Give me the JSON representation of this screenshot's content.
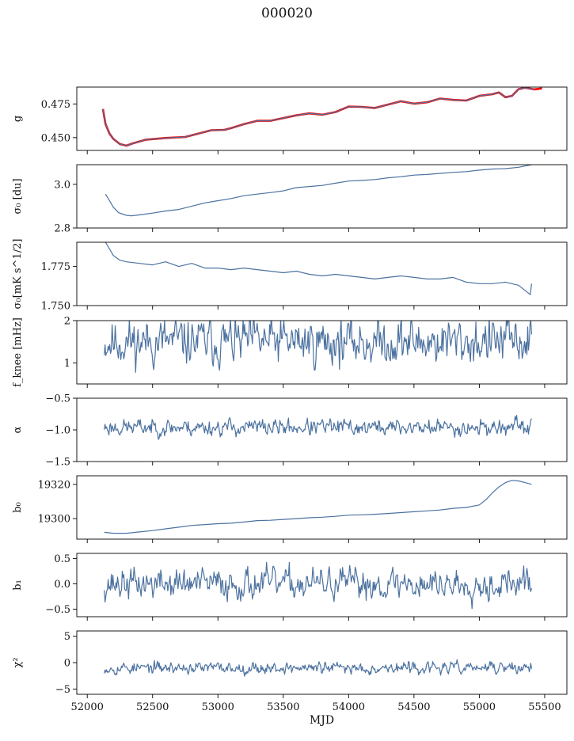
{
  "figure": {
    "title": "000020"
  },
  "chart_data": [
    {
      "type": "line",
      "ylabel": "g",
      "ylim": [
        0.4405,
        0.4875
      ],
      "yticks": [
        0.45,
        0.475
      ],
      "ytick_labels": [
        "0.450",
        "0.475"
      ],
      "series": [
        {
          "color": "#ff0000",
          "points": [
            [
              52120,
              0.4712
            ],
            [
              52140,
              0.46
            ],
            [
              52170,
              0.453
            ],
            [
              52200,
              0.449
            ],
            [
              52250,
              0.4452
            ],
            [
              52300,
              0.444
            ],
            [
              52350,
              0.4458
            ],
            [
              52450,
              0.4485
            ],
            [
              52600,
              0.4497
            ],
            [
              52750,
              0.4505
            ],
            [
              52850,
              0.453
            ],
            [
              52950,
              0.4555
            ],
            [
              53050,
              0.4558
            ],
            [
              53100,
              0.457
            ],
            [
              53200,
              0.46
            ],
            [
              53300,
              0.4625
            ],
            [
              53400,
              0.4625
            ],
            [
              53500,
              0.4645
            ],
            [
              53600,
              0.4665
            ],
            [
              53700,
              0.468
            ],
            [
              53800,
              0.467
            ],
            [
              53900,
              0.469
            ],
            [
              54000,
              0.473
            ],
            [
              54100,
              0.4728
            ],
            [
              54200,
              0.472
            ],
            [
              54300,
              0.4745
            ],
            [
              54400,
              0.477
            ],
            [
              54500,
              0.4752
            ],
            [
              54600,
              0.4762
            ],
            [
              54700,
              0.479
            ],
            [
              54800,
              0.478
            ],
            [
              54900,
              0.4775
            ],
            [
              55000,
              0.481
            ],
            [
              55100,
              0.4822
            ],
            [
              55150,
              0.4835
            ],
            [
              55200,
              0.48
            ],
            [
              55250,
              0.481
            ],
            [
              55300,
              0.486
            ],
            [
              55350,
              0.487
            ],
            [
              55420,
              0.4858
            ],
            [
              55480,
              0.4865
            ]
          ]
        },
        {
          "color": "#4c72a0",
          "points": [
            [
              52120,
              0.4712
            ],
            [
              52140,
              0.46
            ],
            [
              52170,
              0.453
            ],
            [
              52200,
              0.449
            ],
            [
              52250,
              0.4452
            ],
            [
              52300,
              0.444
            ],
            [
              52350,
              0.4458
            ],
            [
              52450,
              0.4485
            ],
            [
              52600,
              0.4497
            ],
            [
              52750,
              0.4505
            ],
            [
              52850,
              0.453
            ],
            [
              52950,
              0.4555
            ],
            [
              53050,
              0.4558
            ],
            [
              53100,
              0.457
            ],
            [
              53200,
              0.46
            ],
            [
              53300,
              0.4625
            ],
            [
              53400,
              0.4625
            ],
            [
              53500,
              0.4645
            ],
            [
              53600,
              0.4665
            ],
            [
              53700,
              0.468
            ],
            [
              53800,
              0.467
            ],
            [
              53900,
              0.469
            ],
            [
              54000,
              0.473
            ],
            [
              54100,
              0.4728
            ],
            [
              54200,
              0.472
            ],
            [
              54300,
              0.4745
            ],
            [
              54400,
              0.477
            ],
            [
              54500,
              0.4752
            ],
            [
              54600,
              0.4762
            ],
            [
              54700,
              0.479
            ],
            [
              54800,
              0.478
            ],
            [
              54900,
              0.4775
            ],
            [
              55000,
              0.481
            ],
            [
              55100,
              0.4822
            ],
            [
              55150,
              0.4835
            ],
            [
              55200,
              0.48
            ],
            [
              55250,
              0.481
            ],
            [
              55300,
              0.486
            ],
            [
              55350,
              0.487
            ],
            [
              55420,
              0.4858
            ]
          ]
        }
      ]
    },
    {
      "type": "line",
      "ylabel": "σ₀ [du]",
      "ylim": [
        2.8,
        3.09
      ],
      "yticks": [
        2.8,
        3.0
      ],
      "ytick_labels": [
        "2.8",
        "3.0"
      ],
      "series": [
        {
          "color": "#4c72a0",
          "points": [
            [
              52140,
              2.955
            ],
            [
              52170,
              2.925
            ],
            [
              52200,
              2.895
            ],
            [
              52240,
              2.87
            ],
            [
              52300,
              2.858
            ],
            [
              52340,
              2.856
            ],
            [
              52400,
              2.86
            ],
            [
              52500,
              2.868
            ],
            [
              52600,
              2.878
            ],
            [
              52700,
              2.885
            ],
            [
              52800,
              2.9
            ],
            [
              52900,
              2.915
            ],
            [
              53000,
              2.925
            ],
            [
              53100,
              2.935
            ],
            [
              53200,
              2.948
            ],
            [
              53300,
              2.955
            ],
            [
              53400,
              2.962
            ],
            [
              53500,
              2.97
            ],
            [
              53600,
              2.985
            ],
            [
              53700,
              2.99
            ],
            [
              53800,
              2.995
            ],
            [
              53900,
              3.005
            ],
            [
              54000,
              3.015
            ],
            [
              54100,
              3.018
            ],
            [
              54200,
              3.022
            ],
            [
              54300,
              3.03
            ],
            [
              54400,
              3.035
            ],
            [
              54500,
              3.042
            ],
            [
              54600,
              3.045
            ],
            [
              54700,
              3.05
            ],
            [
              54800,
              3.055
            ],
            [
              54900,
              3.058
            ],
            [
              55000,
              3.065
            ],
            [
              55100,
              3.07
            ],
            [
              55200,
              3.072
            ],
            [
              55300,
              3.078
            ],
            [
              55400,
              3.09
            ]
          ]
        }
      ]
    },
    {
      "type": "line",
      "ylabel": "σ₀[mK s^1/2]",
      "ylim": [
        1.75,
        1.7905
      ],
      "yticks": [
        1.75,
        1.775
      ],
      "ytick_labels": [
        "1.750",
        "1.775"
      ],
      "series": [
        {
          "color": "#4c72a0",
          "points": [
            [
              52140,
              1.7905
            ],
            [
              52200,
              1.782
            ],
            [
              52250,
              1.779
            ],
            [
              52300,
              1.778
            ],
            [
              52400,
              1.777
            ],
            [
              52500,
              1.776
            ],
            [
              52600,
              1.778
            ],
            [
              52700,
              1.775
            ],
            [
              52800,
              1.777
            ],
            [
              52900,
              1.774
            ],
            [
              53000,
              1.774
            ],
            [
              53100,
              1.773
            ],
            [
              53200,
              1.774
            ],
            [
              53300,
              1.773
            ],
            [
              53400,
              1.772
            ],
            [
              53500,
              1.771
            ],
            [
              53600,
              1.772
            ],
            [
              53700,
              1.77
            ],
            [
              53800,
              1.769
            ],
            [
              53900,
              1.77
            ],
            [
              54000,
              1.769
            ],
            [
              54100,
              1.768
            ],
            [
              54200,
              1.767
            ],
            [
              54300,
              1.768
            ],
            [
              54400,
              1.769
            ],
            [
              54500,
              1.768
            ],
            [
              54600,
              1.767
            ],
            [
              54700,
              1.767
            ],
            [
              54800,
              1.768
            ],
            [
              54900,
              1.765
            ],
            [
              55000,
              1.764
            ],
            [
              55100,
              1.764
            ],
            [
              55200,
              1.765
            ],
            [
              55300,
              1.763
            ],
            [
              55360,
              1.759
            ],
            [
              55390,
              1.757
            ],
            [
              55400,
              1.764
            ]
          ]
        }
      ]
    },
    {
      "type": "line",
      "ylabel": "f_knee [mHz]",
      "ylim": [
        0.5,
        2.0
      ],
      "yticks": [
        1,
        2
      ],
      "ytick_labels": [
        "1",
        "2"
      ],
      "series": [
        {
          "color": "#4c72a0",
          "noise": {
            "from": 52130,
            "to": 55400,
            "step": 6,
            "mean": 1.5,
            "amp": 0.55,
            "seed": 11
          }
        }
      ]
    },
    {
      "type": "line",
      "ylabel": "α",
      "ylim": [
        -1.5,
        -0.5
      ],
      "yticks": [
        -1.5,
        -1.0,
        -0.5
      ],
      "ytick_labels": [
        "−1.5",
        "−1.0",
        "−0.5"
      ],
      "series": [
        {
          "color": "#4c72a0",
          "noise": {
            "from": 52130,
            "to": 55400,
            "step": 6,
            "mean": -0.96,
            "amp": 0.13,
            "seed": 23
          }
        }
      ]
    },
    {
      "type": "line",
      "ylabel": "b₀",
      "ylim": [
        19288,
        19325
      ],
      "yticks": [
        19300,
        19320
      ],
      "ytick_labels": [
        "19300",
        "19320"
      ],
      "series": [
        {
          "color": "#4c72a0",
          "points": [
            [
              52130,
              19292.0
            ],
            [
              52200,
              19291.4
            ],
            [
              52300,
              19291.4
            ],
            [
              52400,
              19292.2
            ],
            [
              52500,
              19293.0
            ],
            [
              52600,
              19294.0
            ],
            [
              52700,
              19295.0
            ],
            [
              52800,
              19296.0
            ],
            [
              52900,
              19296.5
            ],
            [
              53000,
              19297.0
            ],
            [
              53100,
              19297.3
            ],
            [
              53200,
              19298.0
            ],
            [
              53300,
              19298.8
            ],
            [
              53400,
              19299.0
            ],
            [
              53500,
              19299.5
            ],
            [
              53600,
              19300.0
            ],
            [
              53700,
              19300.5
            ],
            [
              53800,
              19300.8
            ],
            [
              53900,
              19301.3
            ],
            [
              54000,
              19302.0
            ],
            [
              54100,
              19302.2
            ],
            [
              54200,
              19302.5
            ],
            [
              54300,
              19303.0
            ],
            [
              54400,
              19303.5
            ],
            [
              54500,
              19304.0
            ],
            [
              54600,
              19304.5
            ],
            [
              54700,
              19305.0
            ],
            [
              54800,
              19306.0
            ],
            [
              54900,
              19306.5
            ],
            [
              55000,
              19308.0
            ],
            [
              55050,
              19311.0
            ],
            [
              55100,
              19315.0
            ],
            [
              55150,
              19318.5
            ],
            [
              55200,
              19321.0
            ],
            [
              55250,
              19322.3
            ],
            [
              55300,
              19322.0
            ],
            [
              55350,
              19321.0
            ],
            [
              55400,
              19320.0
            ]
          ]
        }
      ]
    },
    {
      "type": "line",
      "ylabel": "b₁",
      "ylim": [
        -0.65,
        0.6
      ],
      "yticks": [
        -0.5,
        0.0,
        0.5
      ],
      "ytick_labels": [
        "−0.5",
        "0.0",
        "0.5"
      ],
      "series": [
        {
          "color": "#4c72a0",
          "noise": {
            "from": 52130,
            "to": 55400,
            "step": 6,
            "mean": 0.0,
            "amp": 0.3,
            "seed": 37
          }
        }
      ]
    },
    {
      "type": "line",
      "ylabel": "χ²",
      "ylim": [
        -6,
        6
      ],
      "yticks": [
        -5,
        0,
        5
      ],
      "ytick_labels": [
        "−5",
        "0",
        "5"
      ],
      "xlabel": "MJD",
      "xlim": [
        51920,
        55670
      ],
      "xticks": [
        52000,
        52500,
        53000,
        53500,
        54000,
        54500,
        55000,
        55500
      ],
      "xtick_labels": [
        "52000",
        "52500",
        "53000",
        "53500",
        "54000",
        "54500",
        "55000",
        "55500"
      ],
      "series": [
        {
          "color": "#4c72a0",
          "noise": {
            "from": 52130,
            "to": 55400,
            "step": 6,
            "mean": -1.0,
            "amp": 1.1,
            "seed": 53
          }
        }
      ]
    }
  ]
}
